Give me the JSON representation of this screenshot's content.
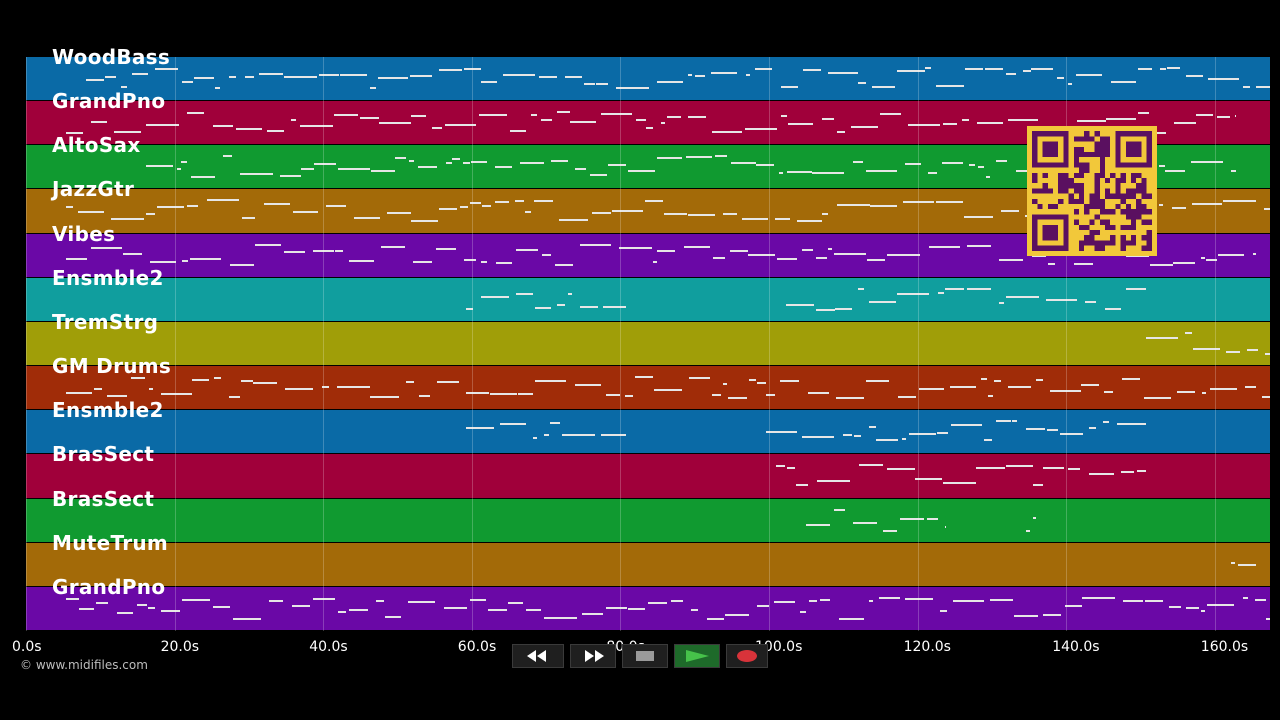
{
  "tracks": [
    {
      "name": "WoodBass",
      "color": "#0a6aa6"
    },
    {
      "name": "GrandPno",
      "color": "#a0003a"
    },
    {
      "name": "AltoSax",
      "color": "#109a30"
    },
    {
      "name": "JazzGtr",
      "color": "#a36a08"
    },
    {
      "name": "Vibes",
      "color": "#6a08a6"
    },
    {
      "name": "Ensmble2",
      "color": "#109e9e"
    },
    {
      "name": "TremStrg",
      "color": "#a09e08"
    },
    {
      "name": "GM Drums",
      "color": "#a02c08"
    },
    {
      "name": "Ensmble2",
      "color": "#0a6aa6"
    },
    {
      "name": "BrasSect",
      "color": "#a0003a"
    },
    {
      "name": "BrasSect",
      "color": "#109a30"
    },
    {
      "name": "MuteTrum",
      "color": "#a36a08"
    },
    {
      "name": "GrandPno",
      "color": "#6a08a6"
    }
  ],
  "timeline": {
    "ticks": [
      "0.0s",
      "20.0s",
      "40.0s",
      "60.0s",
      "80.0s",
      "100.0s",
      "120.0s",
      "140.0s",
      "160.0s"
    ]
  },
  "copyright": "© www.midifiles.com",
  "transport": {
    "rewind_icon": "rewind-icon",
    "forward_icon": "fast-forward-icon",
    "stop_icon": "stop-icon",
    "play_icon": "play-icon",
    "record_icon": "record-icon"
  },
  "qr_icon": "qr-code-icon"
}
